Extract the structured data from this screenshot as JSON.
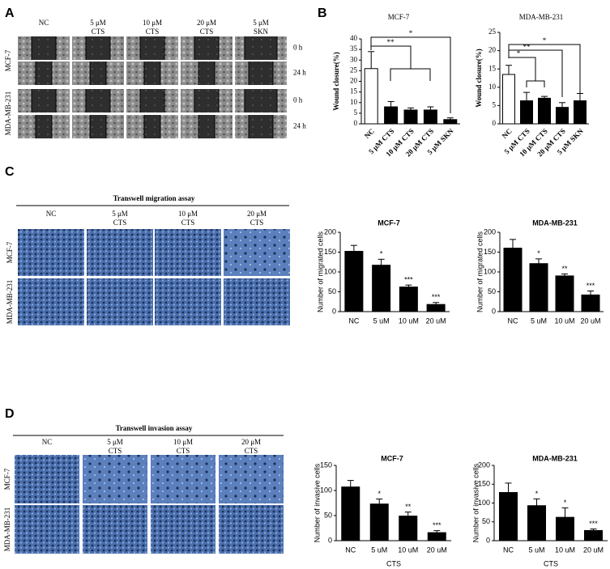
{
  "panels": {
    "A": {
      "label": "A",
      "columns": [
        [
          "NC"
        ],
        [
          "5 μM",
          "CTS"
        ],
        [
          "10 μM",
          "CTS"
        ],
        [
          "20 μM",
          "CTS"
        ],
        [
          "5 μM",
          "SKN"
        ]
      ],
      "rows": [
        "MCF-7",
        "MDA-MB-231"
      ],
      "times": [
        "0 h",
        "24 h"
      ]
    },
    "B": {
      "label": "B"
    },
    "C": {
      "label": "C",
      "title": "Transwell migration assay",
      "columns": [
        [
          "NC"
        ],
        [
          "5 μM",
          "CTS"
        ],
        [
          "10 μM",
          "CTS"
        ],
        [
          "20 μM",
          "CTS"
        ]
      ],
      "rows": [
        "MCF-7",
        "MDA-MB-231"
      ]
    },
    "D": {
      "label": "D",
      "title": "Transwell invasion assay",
      "columns": [
        [
          "NC"
        ],
        [
          "5 μM",
          "CTS"
        ],
        [
          "10 μM",
          "CTS"
        ],
        [
          "20 μM",
          "CTS"
        ]
      ],
      "rows": [
        "MCF-7",
        "MDA-MB-231"
      ]
    }
  },
  "chart_data": [
    {
      "type": "bar",
      "title": "MCF-7",
      "ylabel": "Wound closure(%)",
      "categories": [
        "NC",
        "5 μM CTS",
        "10 μM CTS",
        "20 μM CTS",
        "5 μM SKN"
      ],
      "values": [
        26,
        8,
        6.5,
        6.5,
        2
      ],
      "errors": [
        8,
        2.5,
        1,
        1.5,
        0.8
      ],
      "colors": [
        "#ffffff",
        "#000000",
        "#000000",
        "#000000",
        "#000000"
      ],
      "ylim": [
        0,
        40
      ],
      "yticks": [
        0,
        5,
        10,
        15,
        20,
        25,
        30,
        35,
        40
      ],
      "annotations": [
        "*",
        "**"
      ]
    },
    {
      "type": "bar",
      "title": "MDA-MB-231",
      "ylabel": "Wound closure(%)",
      "categories": [
        "NC",
        "5 μM CTS",
        "10 μM CTS",
        "20 μM CTS",
        "5 μM SKN"
      ],
      "values": [
        13.5,
        6.3,
        7,
        4.5,
        6.3
      ],
      "errors": [
        2.5,
        2.3,
        0.5,
        1.3,
        2
      ],
      "colors": [
        "#ffffff",
        "#000000",
        "#000000",
        "#000000",
        "#000000"
      ],
      "ylim": [
        0,
        25
      ],
      "yticks": [
        0,
        5,
        10,
        15,
        20,
        25
      ],
      "annotations": [
        "*",
        "**",
        "*"
      ]
    },
    {
      "type": "bar",
      "title": "MCF-7",
      "ylabel": "Number of migrated cells",
      "categories": [
        "NC",
        "5 uM",
        "10 uM",
        "20 uM"
      ],
      "values": [
        152,
        117,
        62,
        18
      ],
      "errors": [
        15,
        15,
        5,
        5
      ],
      "sig_labels": [
        null,
        "*",
        "***",
        "***"
      ],
      "color": "#000000",
      "ylim": [
        0,
        200
      ],
      "yticks": [
        0,
        50,
        100,
        150,
        200
      ]
    },
    {
      "type": "bar",
      "title": "MDA-MB-231",
      "ylabel": "Number of migrated cells",
      "categories": [
        "NC",
        "5 uM",
        "10 uM",
        "20 uM"
      ],
      "values": [
        160,
        121,
        90,
        42
      ],
      "errors": [
        22,
        12,
        5,
        10
      ],
      "sig_labels": [
        null,
        "*",
        "**",
        "***"
      ],
      "color": "#000000",
      "ylim": [
        0,
        200
      ],
      "yticks": [
        0,
        50,
        100,
        150,
        200
      ]
    },
    {
      "type": "bar",
      "title": "MCF-7",
      "ylabel": "Number of invasive cells",
      "xlabel": "CTS",
      "categories": [
        "NC",
        "5 uM",
        "10 uM",
        "20 uM"
      ],
      "values": [
        107,
        73,
        49,
        16
      ],
      "errors": [
        13,
        10,
        8,
        4
      ],
      "sig_labels": [
        null,
        "*",
        "**",
        "***"
      ],
      "color": "#000000",
      "ylim": [
        0,
        150
      ],
      "yticks": [
        0,
        50,
        100,
        150
      ]
    },
    {
      "type": "bar",
      "title": "MDA-MB-231",
      "ylabel": "Number of invasive cells",
      "xlabel": "CTS",
      "categories": [
        "NC",
        "5 uM",
        "10 uM",
        "20 uM"
      ],
      "values": [
        128,
        93,
        62,
        27
      ],
      "errors": [
        25,
        18,
        25,
        4
      ],
      "sig_labels": [
        null,
        "*",
        "*",
        "***"
      ],
      "color": "#000000",
      "ylim": [
        0,
        200
      ],
      "yticks": [
        0,
        50,
        100,
        150,
        200
      ]
    }
  ]
}
